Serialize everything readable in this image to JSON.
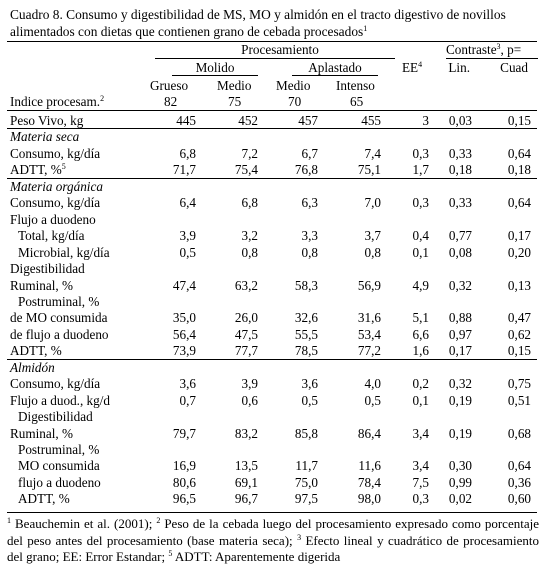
{
  "caption": {
    "text": "Cuadro 8. Consumo y digestibilidad de MS, MO y almidón en el tracto digestivo de novillos alimentados con dietas que contienen grano de cebada procesados",
    "sup": "1"
  },
  "header": {
    "procesamiento": "Procesamiento",
    "molido": "Molido",
    "aplastado": "Aplastado",
    "ee": "EE",
    "ee_sup": "4",
    "contraste": "Contraste",
    "contraste_sup": "3",
    "contraste_suffix": ", p=",
    "grueso": "Grueso",
    "medio1": "Medio",
    "medio2": "Medio",
    "intenso": "Intenso",
    "lin": "Lin.",
    "cuad": "Cuad",
    "indice_label": "Indice procesam.",
    "indice_sup": "2",
    "indices": [
      "82",
      "75",
      "70",
      "65"
    ]
  },
  "rows": [
    {
      "label": "Peso Vivo, kg",
      "values": [
        "445",
        "452",
        "457",
        "455",
        "3",
        "0,03",
        "0,15"
      ]
    },
    {
      "label": "Materia seca",
      "section": true
    },
    {
      "label": "Consumo, kg/día",
      "values": [
        "6,8",
        "7,2",
        "6,7",
        "7,4",
        "0,3",
        "0,33",
        "0,64"
      ]
    },
    {
      "label": "ADTT, %",
      "sup": "5",
      "values": [
        "71,7",
        "75,4",
        "76,8",
        "75,1",
        "1,7",
        "0,18",
        "0,18"
      ]
    },
    {
      "label": "Materia orgánica",
      "section": true
    },
    {
      "label": "Consumo, kg/día",
      "values": [
        "6,4",
        "6,8",
        "6,3",
        "7,0",
        "0,3",
        "0,33",
        "0,64"
      ]
    },
    {
      "label": "Flujo a duodeno"
    },
    {
      "label": "Total, kg/día",
      "indent": 1,
      "values": [
        "3,9",
        "3,2",
        "3,3",
        "3,7",
        "0,4",
        "0,77",
        "0,17"
      ]
    },
    {
      "label": "Microbial, kg/día",
      "indent": 1,
      "values": [
        "0,5",
        "0,8",
        "0,8",
        "0,8",
        "0,1",
        "0,08",
        "0,20"
      ]
    },
    {
      "label": "Digestibilidad"
    },
    {
      "label": "Ruminal, %",
      "values": [
        "47,4",
        "63,2",
        "58,3",
        "56,9",
        "4,9",
        "0,32",
        "0,13"
      ]
    },
    {
      "label": "Postruminal, %",
      "indent": 1
    },
    {
      "label": "de MO consumida",
      "values": [
        "35,0",
        "26,0",
        "32,6",
        "31,6",
        "5,1",
        "0,88",
        "0,47"
      ]
    },
    {
      "label": "de flujo a duodeno",
      "values": [
        "56,4",
        "47,5",
        "55,5",
        "53,4",
        "6,6",
        "0,97",
        "0,62"
      ]
    },
    {
      "label": "ADTT, %",
      "values": [
        "73,9",
        "77,7",
        "78,5",
        "77,2",
        "1,6",
        "0,17",
        "0,15"
      ]
    },
    {
      "label": "Almidón",
      "section": true
    },
    {
      "label": "Consumo, kg/día",
      "values": [
        "3,6",
        "3,9",
        "3,6",
        "4,0",
        "0,2",
        "0,32",
        "0,75"
      ]
    },
    {
      "label": "Flujo a duod., kg/d",
      "values": [
        "0,7",
        "0,6",
        "0,5",
        "0,5",
        "0,1",
        "0,19",
        "0,51"
      ]
    },
    {
      "label": "Digestibilidad",
      "indent": 1
    },
    {
      "label": "Ruminal, %",
      "values": [
        "79,7",
        "83,2",
        "85,8",
        "86,4",
        "3,4",
        "0,19",
        "0,68"
      ]
    },
    {
      "label": "Postruminal, %",
      "indent": 1
    },
    {
      "label": "MO consumida",
      "indent": 1,
      "values": [
        "16,9",
        "13,5",
        "11,7",
        "11,6",
        "3,4",
        "0,30",
        "0,64"
      ]
    },
    {
      "label": "flujo a duodeno",
      "indent": 1,
      "values": [
        "80,6",
        "69,1",
        "75,0",
        "78,4",
        "7,5",
        "0,99",
        "0,36"
      ]
    },
    {
      "label": "ADTT, %",
      "indent": 1,
      "values": [
        "96,5",
        "96,7",
        "97,5",
        "98,0",
        "0,3",
        "0,02",
        "0,60"
      ]
    }
  ],
  "footnotes": {
    "fn1": "1",
    "t1": " Beauchemin et al. (2001); ",
    "fn2": "2",
    "t2": " Peso de la cebada luego del procesamiento expresado como porcentaje del peso antes del procesamiento (base materia seca); ",
    "fn3": "3",
    "t3": " Efecto lineal y cuadrático de procesamiento del grano; EE: Error Estandar; ",
    "fn5": "5",
    "t5": " ADTT: Aparentemente digerida"
  }
}
